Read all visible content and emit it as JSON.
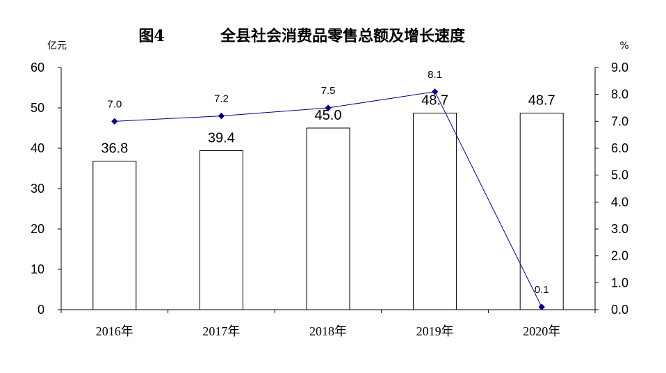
{
  "chart_data": {
    "type": "bar",
    "title_prefix": "图4",
    "title": "全县社会消费品零售总额及增长速度",
    "ylabel_left": "亿元",
    "ylabel_right": "%",
    "categories": [
      "2016年",
      "2017年",
      "2018年",
      "2019年",
      "2020年"
    ],
    "series": [
      {
        "kind": "bar",
        "axis": "left",
        "values": [
          36.8,
          39.4,
          45.0,
          48.7,
          48.7
        ],
        "labels": [
          "36.8",
          "39.4",
          "45.0",
          "48.7",
          "48.7"
        ],
        "fill": "#ffffff",
        "stroke": "#000000"
      },
      {
        "kind": "line",
        "axis": "right",
        "values": [
          7.0,
          7.2,
          7.5,
          8.1,
          0.1
        ],
        "labels": [
          "7.0",
          "7.2",
          "7.5",
          "8.1",
          "0.1"
        ],
        "color": "#000080",
        "marker": "diamond"
      }
    ],
    "ylim_left": [
      0,
      60
    ],
    "yticks_left": [
      "0",
      "10",
      "20",
      "30",
      "40",
      "50",
      "60"
    ],
    "ylim_right": [
      0,
      9
    ],
    "yticks_right": [
      "0.0",
      "1.0",
      "2.0",
      "3.0",
      "4.0",
      "5.0",
      "6.0",
      "7.0",
      "8.0",
      "9.0"
    ],
    "grid": false,
    "legend": false
  }
}
